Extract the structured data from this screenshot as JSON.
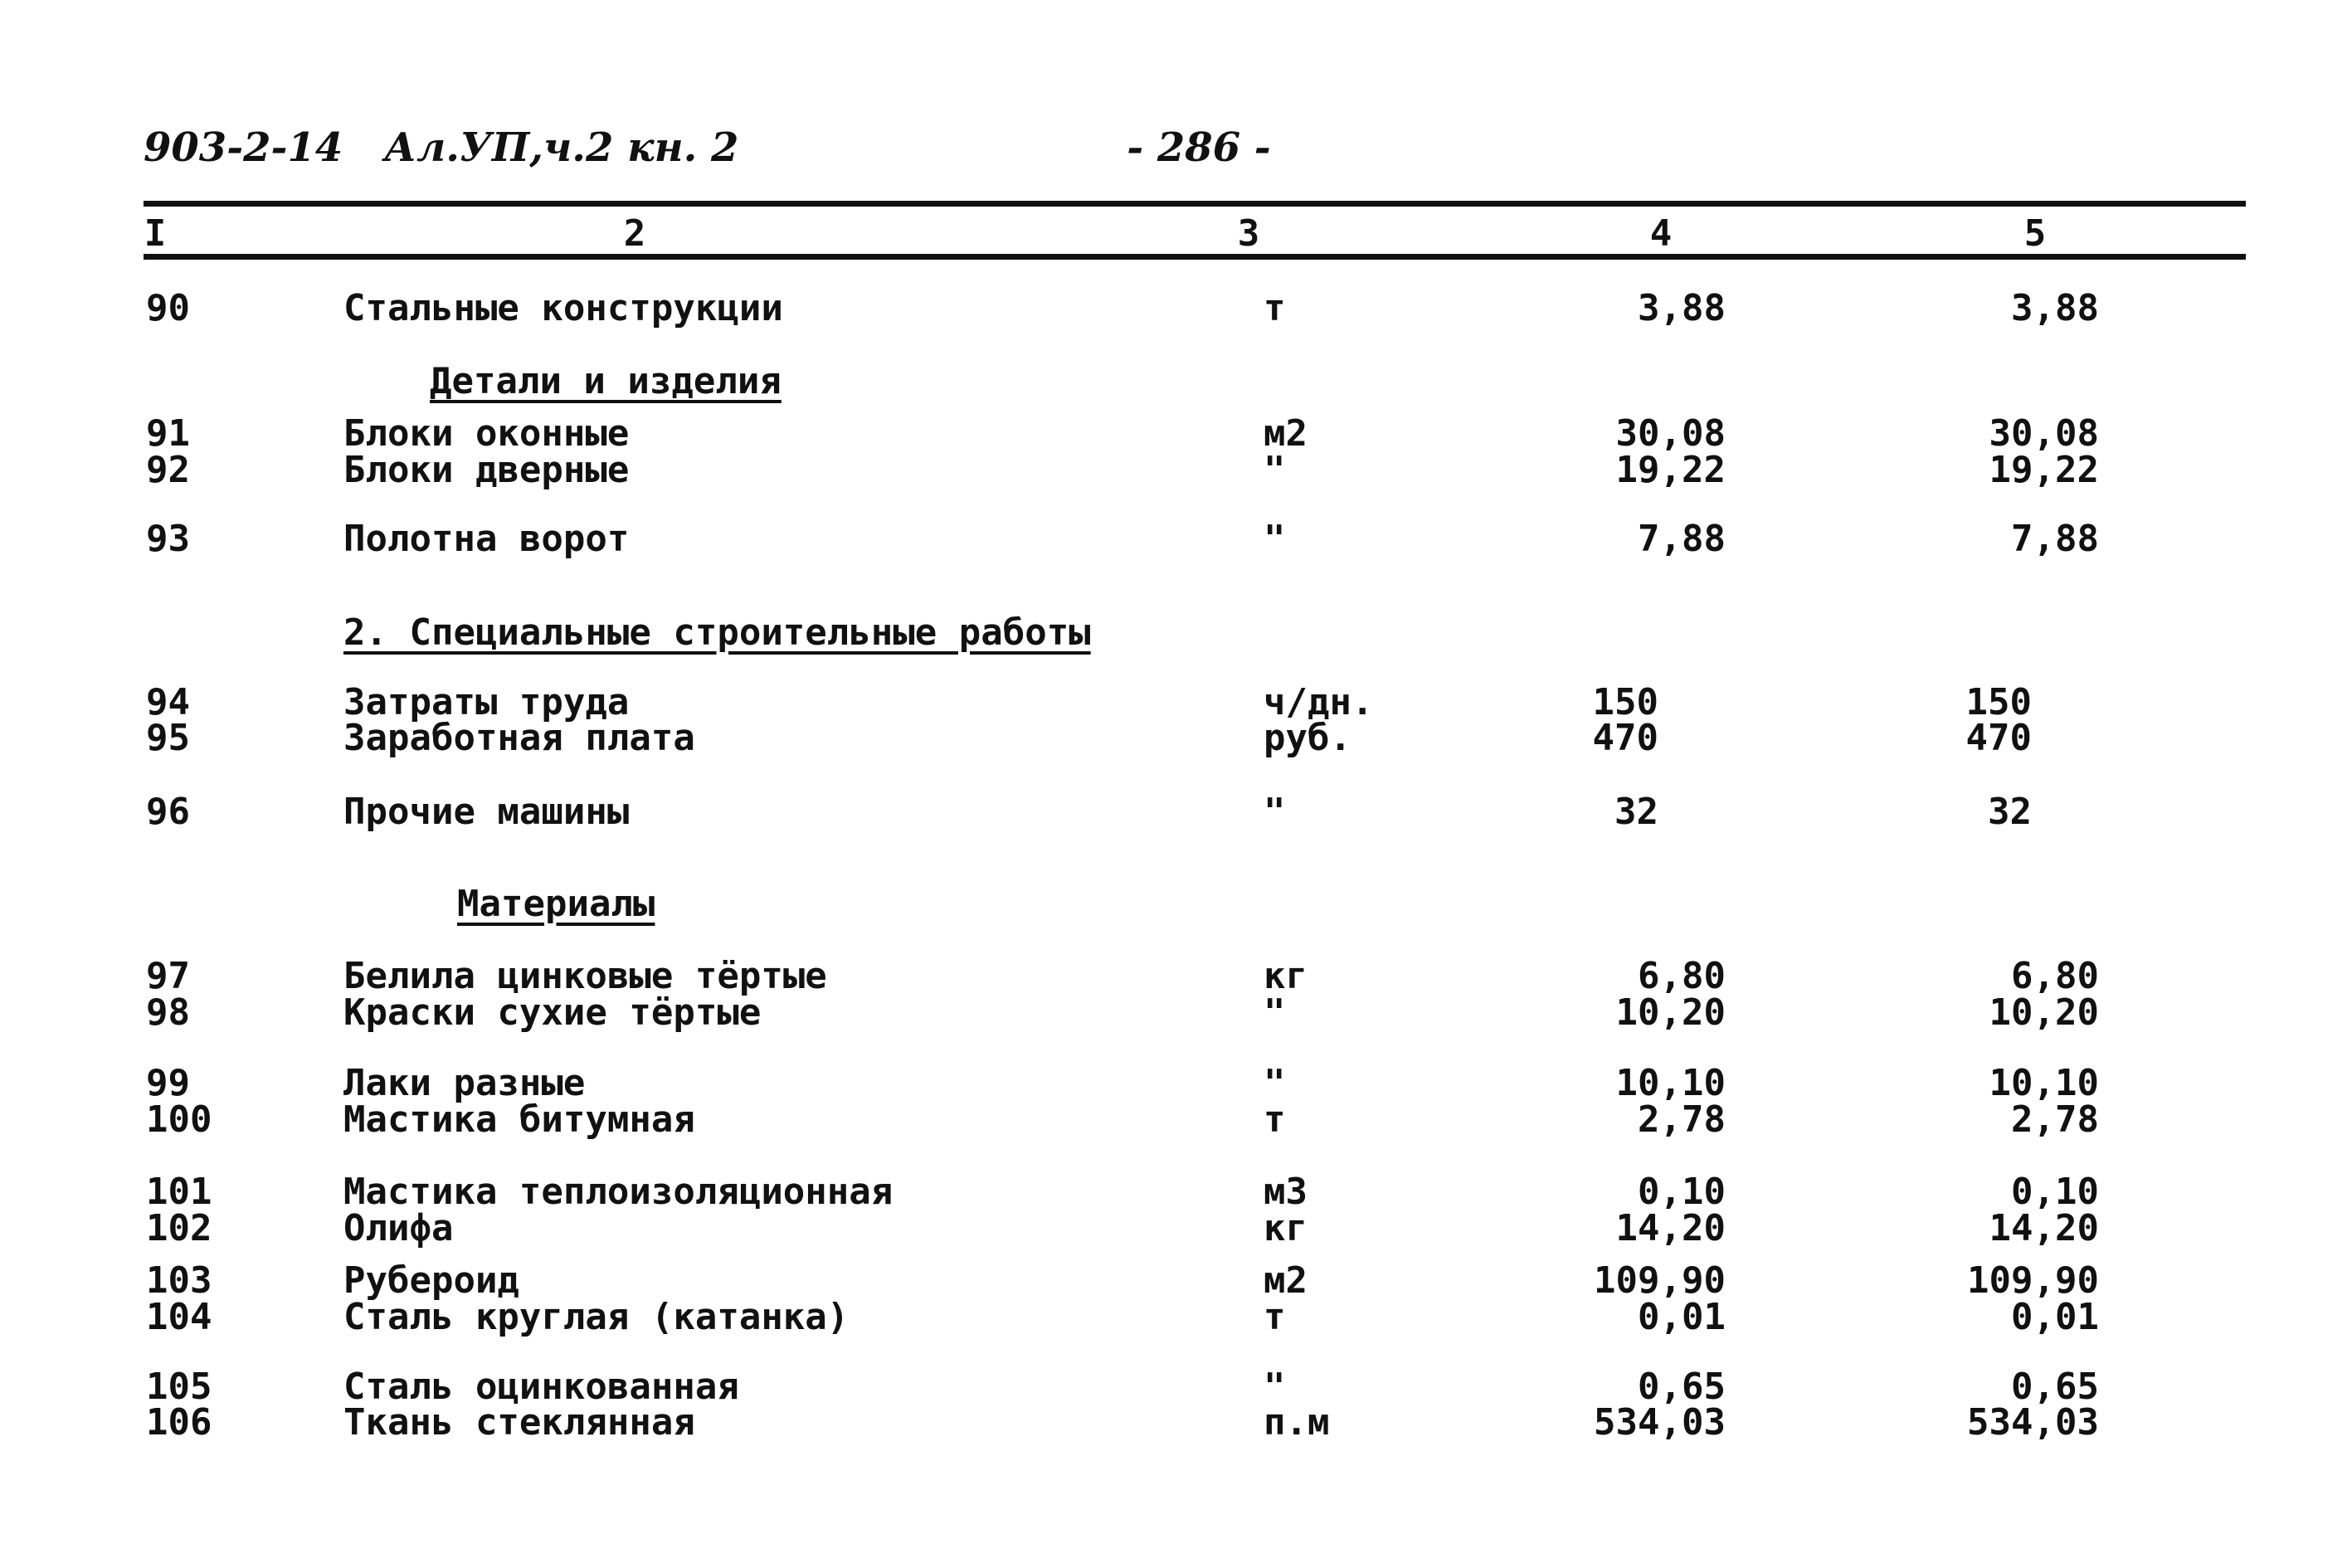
{
  "header": {
    "code": "903-2-14",
    "album": "Ал.УП,ч.2 кн. 2",
    "page": "- 286 -"
  },
  "columns": [
    "I",
    "2",
    "3",
    "4",
    "5"
  ],
  "rows": [
    {
      "num": "90",
      "name": "Стальные конструкции",
      "unit": "т",
      "c4": "3,88",
      "c5": "3,88"
    },
    {
      "section": "Детали и изделия"
    },
    {
      "num": "91",
      "name": "Блоки оконные",
      "unit": "м2",
      "c4": "30,08",
      "c5": "30,08"
    },
    {
      "num": "92",
      "name": "Блоки дверные",
      "unit": "\"",
      "c4": "19,22",
      "c5": "19,22"
    },
    {
      "num": "93",
      "name": "Полотна ворот",
      "unit": "\"",
      "c4": "7,88",
      "c5": "7,88"
    },
    {
      "section": "2. Специальные строительные работы"
    },
    {
      "num": "94",
      "name": "Затраты труда",
      "unit": "ч/дн.",
      "c4": "150",
      "c5": "150"
    },
    {
      "num": "95",
      "name": "Заработная плата",
      "unit": "руб.",
      "c4": "470",
      "c5": "470"
    },
    {
      "num": "96",
      "name": "Прочие машины",
      "unit": "\"",
      "c4": "32",
      "c5": "32"
    },
    {
      "section": "Материалы"
    },
    {
      "num": "97",
      "name": "Белила цинковые тёртые",
      "unit": "кг",
      "c4": "6,80",
      "c5": "6,80"
    },
    {
      "num": "98",
      "name": "Краски сухие тёртые",
      "unit": "\"",
      "c4": "10,20",
      "c5": "10,20"
    },
    {
      "num": "99",
      "name": "Лаки разные",
      "unit": "\"",
      "c4": "10,10",
      "c5": "10,10"
    },
    {
      "num": "100",
      "name": "Мастика битумная",
      "unit": "т",
      "c4": "2,78",
      "c5": "2,78"
    },
    {
      "num": "101",
      "name": "Мастика теплоизоляционная",
      "unit": "м3",
      "c4": "0,10",
      "c5": "0,10"
    },
    {
      "num": "102",
      "name": "Олифа",
      "unit": "кг",
      "c4": "14,20",
      "c5": "14,20"
    },
    {
      "num": "103",
      "name": "Рубероид",
      "unit": "м2",
      "c4": "109,90",
      "c5": "109,90"
    },
    {
      "num": "104",
      "name": "Сталь круглая (катанка)",
      "unit": "т",
      "c4": "0,01",
      "c5": "0,01"
    },
    {
      "num": "105",
      "name": "Сталь оцинкованная",
      "unit": "\"",
      "c4": "0,65",
      "c5": "0,65"
    },
    {
      "num": "106",
      "name": "Ткань стеклянная",
      "unit": "п.м",
      "c4": "534,03",
      "c5": "534,03"
    }
  ]
}
